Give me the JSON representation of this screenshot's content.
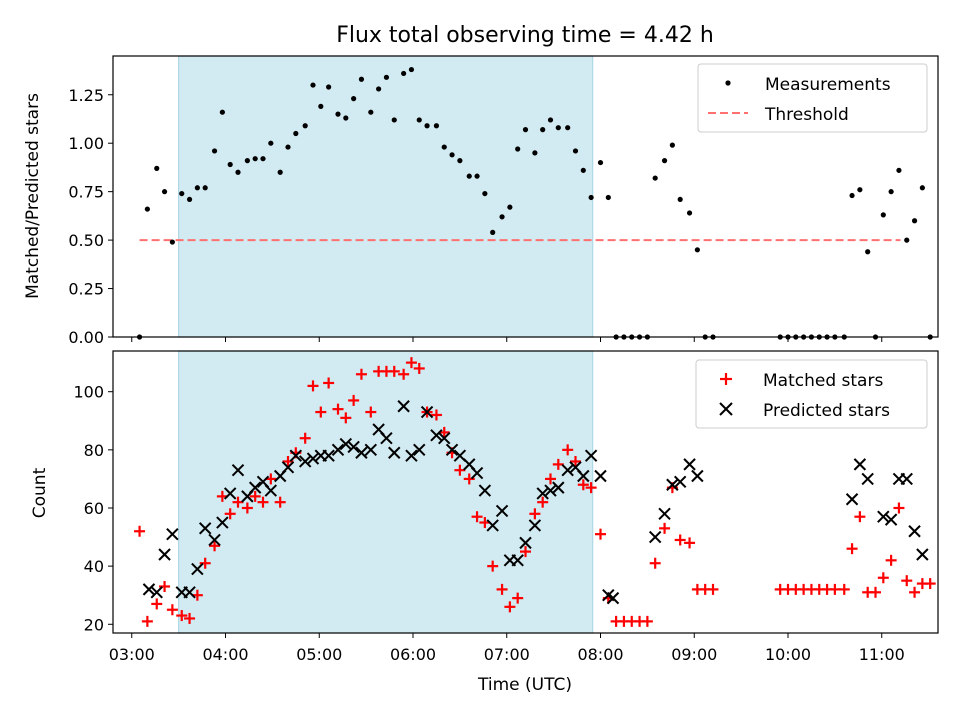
{
  "title": "Flux total observing time = 4.42 h",
  "colors": {
    "shade": "#add8e6",
    "measurement": "#000000",
    "threshold": "#ff7070",
    "matched": "#ff0000",
    "predicted": "#000000"
  },
  "chart_data": [
    {
      "type": "scatter",
      "ylabel": "Matched/Predicted stars",
      "xlim": [
        "02:48",
        "11:36"
      ],
      "ylim": [
        0,
        1.45
      ],
      "yticks": [
        "0.00",
        "0.25",
        "0.50",
        "0.75",
        "1.00",
        "1.25"
      ],
      "shaded_interval": [
        "03:30",
        "07:55"
      ],
      "legend": {
        "position": "top-right",
        "entries": [
          "Measurements",
          "Threshold"
        ]
      },
      "threshold": {
        "name": "Threshold",
        "y": 0.5,
        "x_range": [
          "03:05",
          "11:12"
        ]
      },
      "series": [
        {
          "name": "Measurements",
          "points": [
            [
              "03:05",
              0.0
            ],
            [
              "03:10",
              0.66
            ],
            [
              "03:16",
              0.87
            ],
            [
              "03:21",
              0.75
            ],
            [
              "03:26",
              0.49
            ],
            [
              "03:32",
              0.74
            ],
            [
              "03:37",
              0.71
            ],
            [
              "03:42",
              0.77
            ],
            [
              "03:47",
              0.77
            ],
            [
              "03:53",
              0.96
            ],
            [
              "03:58",
              1.16
            ],
            [
              "04:03",
              0.89
            ],
            [
              "04:08",
              0.85
            ],
            [
              "04:14",
              0.91
            ],
            [
              "04:19",
              0.92
            ],
            [
              "04:24",
              0.92
            ],
            [
              "04:29",
              1.0
            ],
            [
              "04:35",
              0.85
            ],
            [
              "04:40",
              0.98
            ],
            [
              "04:45",
              1.05
            ],
            [
              "04:51",
              1.09
            ],
            [
              "04:56",
              1.3
            ],
            [
              "05:01",
              1.19
            ],
            [
              "05:06",
              1.29
            ],
            [
              "05:12",
              1.15
            ],
            [
              "05:17",
              1.13
            ],
            [
              "05:22",
              1.23
            ],
            [
              "05:27",
              1.33
            ],
            [
              "05:33",
              1.16
            ],
            [
              "05:38",
              1.28
            ],
            [
              "05:43",
              1.34
            ],
            [
              "05:48",
              1.12
            ],
            [
              "05:54",
              1.36
            ],
            [
              "05:59",
              1.38
            ],
            [
              "06:04",
              1.12
            ],
            [
              "06:09",
              1.09
            ],
            [
              "06:15",
              1.09
            ],
            [
              "06:20",
              0.98
            ],
            [
              "06:25",
              0.94
            ],
            [
              "06:30",
              0.91
            ],
            [
              "06:36",
              0.83
            ],
            [
              "06:41",
              0.83
            ],
            [
              "06:46",
              0.74
            ],
            [
              "06:51",
              0.54
            ],
            [
              "06:57",
              0.62
            ],
            [
              "07:02",
              0.67
            ],
            [
              "07:07",
              0.97
            ],
            [
              "07:12",
              1.07
            ],
            [
              "07:18",
              0.95
            ],
            [
              "07:23",
              1.07
            ],
            [
              "07:28",
              1.12
            ],
            [
              "07:33",
              1.08
            ],
            [
              "07:39",
              1.08
            ],
            [
              "07:44",
              0.96
            ],
            [
              "07:49",
              0.86
            ],
            [
              "07:54",
              0.72
            ],
            [
              "08:00",
              0.9
            ],
            [
              "08:05",
              0.72
            ],
            [
              "08:10",
              0.0
            ],
            [
              "08:15",
              0.0
            ],
            [
              "08:20",
              0.0
            ],
            [
              "08:25",
              0.0
            ],
            [
              "08:30",
              0.0
            ],
            [
              "08:35",
              0.82
            ],
            [
              "08:41",
              0.91
            ],
            [
              "08:46",
              0.99
            ],
            [
              "08:51",
              0.71
            ],
            [
              "08:57",
              0.64
            ],
            [
              "09:02",
              0.45
            ],
            [
              "09:07",
              0.0
            ],
            [
              "09:12",
              0.0
            ],
            [
              "09:55",
              0.0
            ],
            [
              "10:00",
              0.0
            ],
            [
              "10:05",
              0.0
            ],
            [
              "10:10",
              0.0
            ],
            [
              "10:15",
              0.0
            ],
            [
              "10:20",
              0.0
            ],
            [
              "10:25",
              0.0
            ],
            [
              "10:30",
              0.0
            ],
            [
              "10:36",
              0.0
            ],
            [
              "10:41",
              0.73
            ],
            [
              "10:46",
              0.76
            ],
            [
              "10:51",
              0.44
            ],
            [
              "10:56",
              0.0
            ],
            [
              "11:01",
              0.63
            ],
            [
              "11:06",
              0.75
            ],
            [
              "11:11",
              0.86
            ],
            [
              "11:16",
              0.5
            ],
            [
              "11:21",
              0.6
            ],
            [
              "11:26",
              0.77
            ],
            [
              "11:31",
              0.0
            ]
          ]
        }
      ]
    },
    {
      "type": "scatter",
      "ylabel": "Count",
      "xlabel": "Time (UTC)",
      "xlim": [
        "02:48",
        "11:36"
      ],
      "ylim": [
        17,
        114
      ],
      "yticks": [
        "20",
        "40",
        "60",
        "80",
        "100"
      ],
      "xticks": [
        "03:00",
        "04:00",
        "05:00",
        "06:00",
        "07:00",
        "08:00",
        "09:00",
        "10:00",
        "11:00"
      ],
      "shaded_interval": [
        "03:30",
        "07:55"
      ],
      "legend": {
        "position": "top-right",
        "entries": [
          "Matched stars",
          "Predicted stars"
        ]
      },
      "series": [
        {
          "name": "Matched stars",
          "marker": "+",
          "points": [
            [
              "03:05",
              52
            ],
            [
              "03:10",
              21
            ],
            [
              "03:16",
              27
            ],
            [
              "03:21",
              33
            ],
            [
              "03:26",
              25
            ],
            [
              "03:32",
              23
            ],
            [
              "03:37",
              22
            ],
            [
              "03:42",
              30
            ],
            [
              "03:47",
              41
            ],
            [
              "03:53",
              47
            ],
            [
              "03:58",
              64
            ],
            [
              "04:03",
              58
            ],
            [
              "04:08",
              62
            ],
            [
              "04:14",
              60
            ],
            [
              "04:19",
              64
            ],
            [
              "04:24",
              62
            ],
            [
              "04:29",
              70
            ],
            [
              "04:35",
              62
            ],
            [
              "04:40",
              76
            ],
            [
              "04:45",
              79
            ],
            [
              "04:51",
              84
            ],
            [
              "04:56",
              102
            ],
            [
              "05:01",
              93
            ],
            [
              "05:06",
              103
            ],
            [
              "05:12",
              94
            ],
            [
              "05:17",
              91
            ],
            [
              "05:22",
              97
            ],
            [
              "05:27",
              106
            ],
            [
              "05:33",
              93
            ],
            [
              "05:38",
              107
            ],
            [
              "05:43",
              107
            ],
            [
              "05:48",
              107
            ],
            [
              "05:54",
              106
            ],
            [
              "05:59",
              110
            ],
            [
              "06:04",
              108
            ],
            [
              "06:09",
              93
            ],
            [
              "06:15",
              92
            ],
            [
              "06:20",
              86
            ],
            [
              "06:25",
              79
            ],
            [
              "06:30",
              73
            ],
            [
              "06:36",
              70
            ],
            [
              "06:41",
              57
            ],
            [
              "06:46",
              55
            ],
            [
              "06:51",
              40
            ],
            [
              "06:57",
              32
            ],
            [
              "07:02",
              26
            ],
            [
              "07:07",
              29
            ],
            [
              "07:12",
              45
            ],
            [
              "07:18",
              58
            ],
            [
              "07:23",
              62
            ],
            [
              "07:28",
              70
            ],
            [
              "07:33",
              75
            ],
            [
              "07:39",
              80
            ],
            [
              "07:44",
              76
            ],
            [
              "07:49",
              68
            ],
            [
              "07:54",
              67
            ],
            [
              "08:00",
              51
            ],
            [
              "08:05",
              29
            ],
            [
              "08:10",
              21
            ],
            [
              "08:15",
              21
            ],
            [
              "08:20",
              21
            ],
            [
              "08:25",
              21
            ],
            [
              "08:30",
              21
            ],
            [
              "08:35",
              41
            ],
            [
              "08:41",
              53
            ],
            [
              "08:46",
              67
            ],
            [
              "08:51",
              49
            ],
            [
              "08:57",
              48
            ],
            [
              "09:02",
              32
            ],
            [
              "09:07",
              32
            ],
            [
              "09:12",
              32
            ],
            [
              "09:55",
              32
            ],
            [
              "10:00",
              32
            ],
            [
              "10:05",
              32
            ],
            [
              "10:10",
              32
            ],
            [
              "10:15",
              32
            ],
            [
              "10:20",
              32
            ],
            [
              "10:25",
              32
            ],
            [
              "10:30",
              32
            ],
            [
              "10:36",
              32
            ],
            [
              "10:41",
              46
            ],
            [
              "10:46",
              57
            ],
            [
              "10:51",
              31
            ],
            [
              "10:56",
              31
            ],
            [
              "11:01",
              36
            ],
            [
              "11:06",
              42
            ],
            [
              "11:11",
              60
            ],
            [
              "11:16",
              35
            ],
            [
              "11:21",
              31
            ],
            [
              "11:26",
              34
            ],
            [
              "11:31",
              34
            ]
          ]
        },
        {
          "name": "Predicted stars",
          "marker": "x",
          "points": [
            [
              "03:11",
              32
            ],
            [
              "03:16",
              31
            ],
            [
              "03:21",
              44
            ],
            [
              "03:26",
              51
            ],
            [
              "03:32",
              31
            ],
            [
              "03:37",
              31
            ],
            [
              "03:42",
              39
            ],
            [
              "03:47",
              53
            ],
            [
              "03:53",
              49
            ],
            [
              "03:58",
              55
            ],
            [
              "04:03",
              65
            ],
            [
              "04:08",
              73
            ],
            [
              "04:14",
              64
            ],
            [
              "04:19",
              67
            ],
            [
              "04:24",
              69
            ],
            [
              "04:29",
              66
            ],
            [
              "04:35",
              71
            ],
            [
              "04:40",
              74
            ],
            [
              "04:45",
              78
            ],
            [
              "04:51",
              76
            ],
            [
              "04:56",
              77
            ],
            [
              "05:01",
              78
            ],
            [
              "05:06",
              78
            ],
            [
              "05:12",
              80
            ],
            [
              "05:17",
              82
            ],
            [
              "05:22",
              81
            ],
            [
              "05:27",
              79
            ],
            [
              "05:33",
              80
            ],
            [
              "05:38",
              87
            ],
            [
              "05:43",
              84
            ],
            [
              "05:48",
              79
            ],
            [
              "05:54",
              95
            ],
            [
              "05:59",
              78
            ],
            [
              "06:04",
              80
            ],
            [
              "06:09",
              93
            ],
            [
              "06:15",
              85
            ],
            [
              "06:20",
              84
            ],
            [
              "06:25",
              80
            ],
            [
              "06:30",
              78
            ],
            [
              "06:36",
              75
            ],
            [
              "06:41",
              72
            ],
            [
              "06:46",
              66
            ],
            [
              "06:51",
              54
            ],
            [
              "06:57",
              59
            ],
            [
              "07:02",
              42
            ],
            [
              "07:07",
              42
            ],
            [
              "07:12",
              48
            ],
            [
              "07:18",
              54
            ],
            [
              "07:23",
              65
            ],
            [
              "07:28",
              66
            ],
            [
              "07:33",
              67
            ],
            [
              "07:39",
              73
            ],
            [
              "07:44",
              74
            ],
            [
              "07:49",
              71
            ],
            [
              "07:54",
              78
            ],
            [
              "08:00",
              71
            ],
            [
              "08:05",
              30
            ],
            [
              "08:08",
              29
            ],
            [
              "08:35",
              50
            ],
            [
              "08:41",
              58
            ],
            [
              "08:46",
              68
            ],
            [
              "08:51",
              69
            ],
            [
              "08:57",
              75
            ],
            [
              "09:02",
              71
            ],
            [
              "10:41",
              63
            ],
            [
              "10:46",
              75
            ],
            [
              "10:51",
              70
            ],
            [
              "11:01",
              57
            ],
            [
              "11:06",
              56
            ],
            [
              "11:11",
              70
            ],
            [
              "11:16",
              70
            ],
            [
              "11:21",
              52
            ],
            [
              "11:26",
              44
            ]
          ]
        }
      ]
    }
  ]
}
